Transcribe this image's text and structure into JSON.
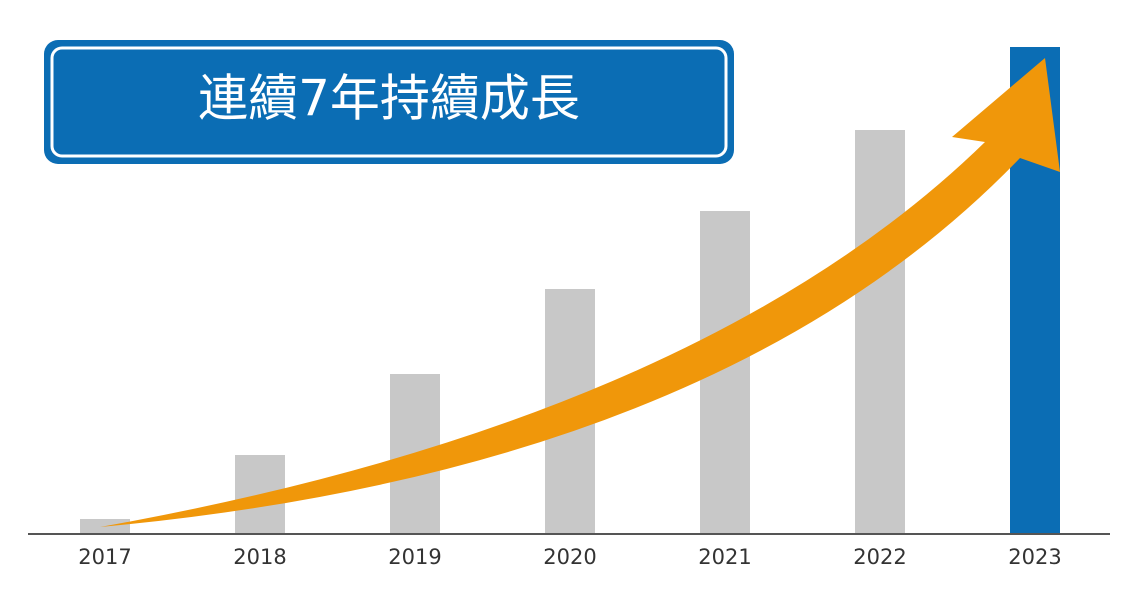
{
  "chart_data": {
    "type": "bar",
    "title": "連續7年持續成長",
    "categories": [
      "2017",
      "2018",
      "2019",
      "2020",
      "2021",
      "2022",
      "2023"
    ],
    "values": [
      15,
      79,
      160,
      245,
      323,
      404,
      487
    ],
    "colors": [
      "#c8c8c8",
      "#c8c8c8",
      "#c8c8c8",
      "#c8c8c8",
      "#c8c8c8",
      "#c8c8c8",
      "#0b6db4"
    ],
    "ylim": [
      0,
      500
    ]
  }
}
